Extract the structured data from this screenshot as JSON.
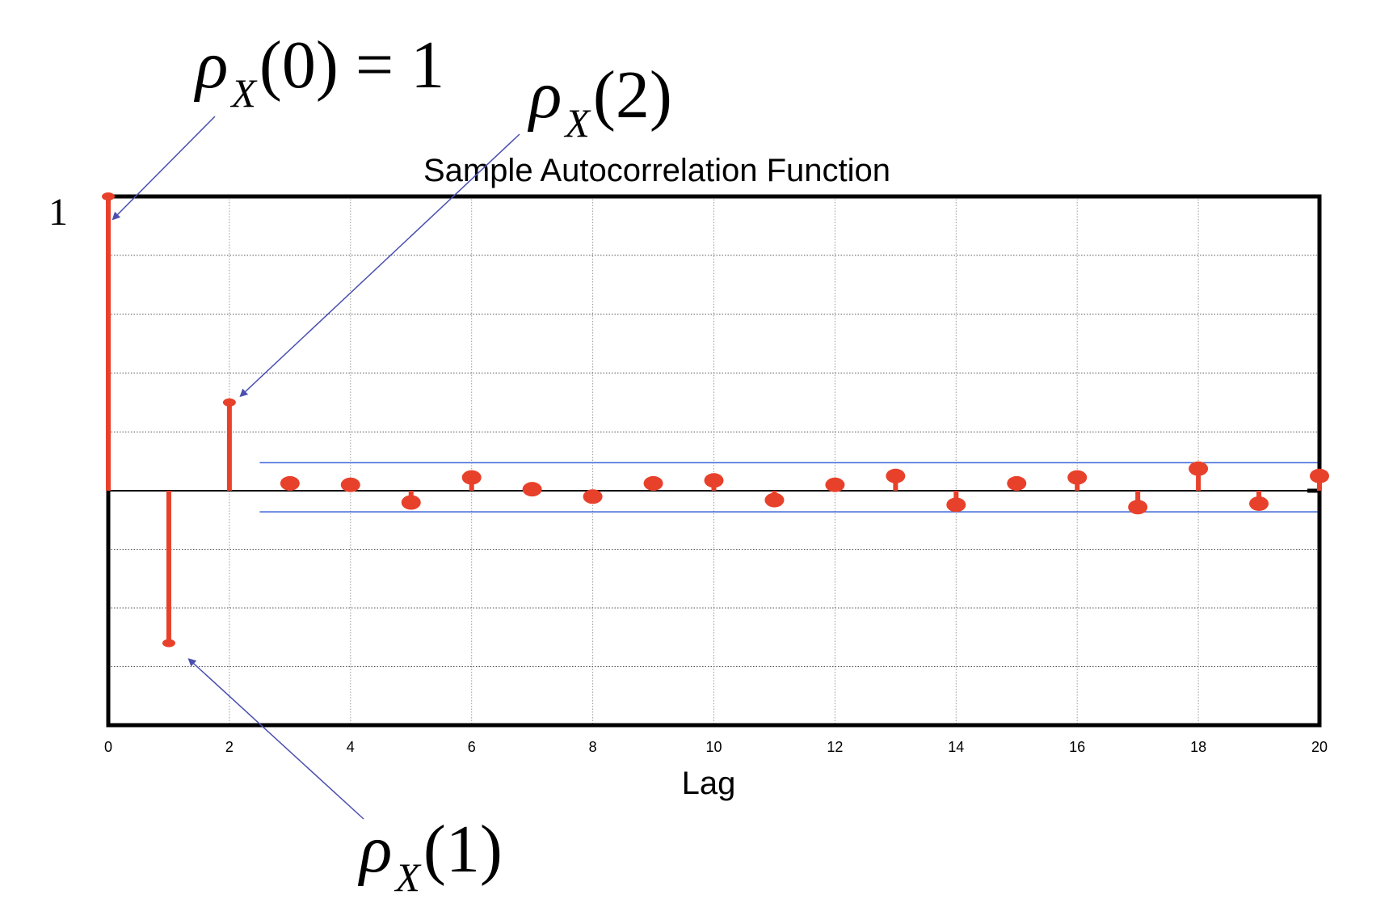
{
  "chart_data": {
    "type": "stem",
    "title": "Sample Autocorrelation Function",
    "xlabel": "Lag",
    "ylabel": "",
    "xlim": [
      0,
      20
    ],
    "ylim": [
      -1,
      1
    ],
    "x_ticks": [
      0,
      2,
      4,
      6,
      8,
      10,
      12,
      14,
      16,
      18,
      20
    ],
    "x_tick_labels": [
      "0",
      "2",
      "4",
      "6",
      "8",
      "10",
      "12",
      "14",
      "16",
      "18",
      "20"
    ],
    "grid": true,
    "y_tick_label": "1",
    "lags": [
      0,
      1,
      2,
      3,
      4,
      5,
      6,
      7,
      8,
      9,
      10,
      11,
      12,
      13,
      14,
      15,
      16,
      17,
      18,
      19,
      20
    ],
    "values": [
      1.0,
      -0.65,
      0.3,
      0.025,
      0.02,
      -0.05,
      0.045,
      0.005,
      -0.025,
      0.025,
      0.035,
      -0.04,
      0.02,
      0.05,
      -0.06,
      0.025,
      0.045,
      -0.07,
      0.075,
      -0.055,
      0.05
    ],
    "confidence_bounds": [
      0.095,
      -0.09
    ],
    "stem_color": "#e8412b",
    "bound_color": "#3a63d8",
    "annotations": [
      {
        "main": "ρ",
        "sub": "X",
        "suffix": "(0) = 1",
        "target_lag": 0
      },
      {
        "main": "ρ",
        "sub": "X",
        "suffix": "(2)",
        "target_lag": 2
      },
      {
        "main": "ρ",
        "sub": "X",
        "suffix": "(1)",
        "target_lag": 1
      }
    ],
    "arrow_color": "#4a4fb0"
  }
}
